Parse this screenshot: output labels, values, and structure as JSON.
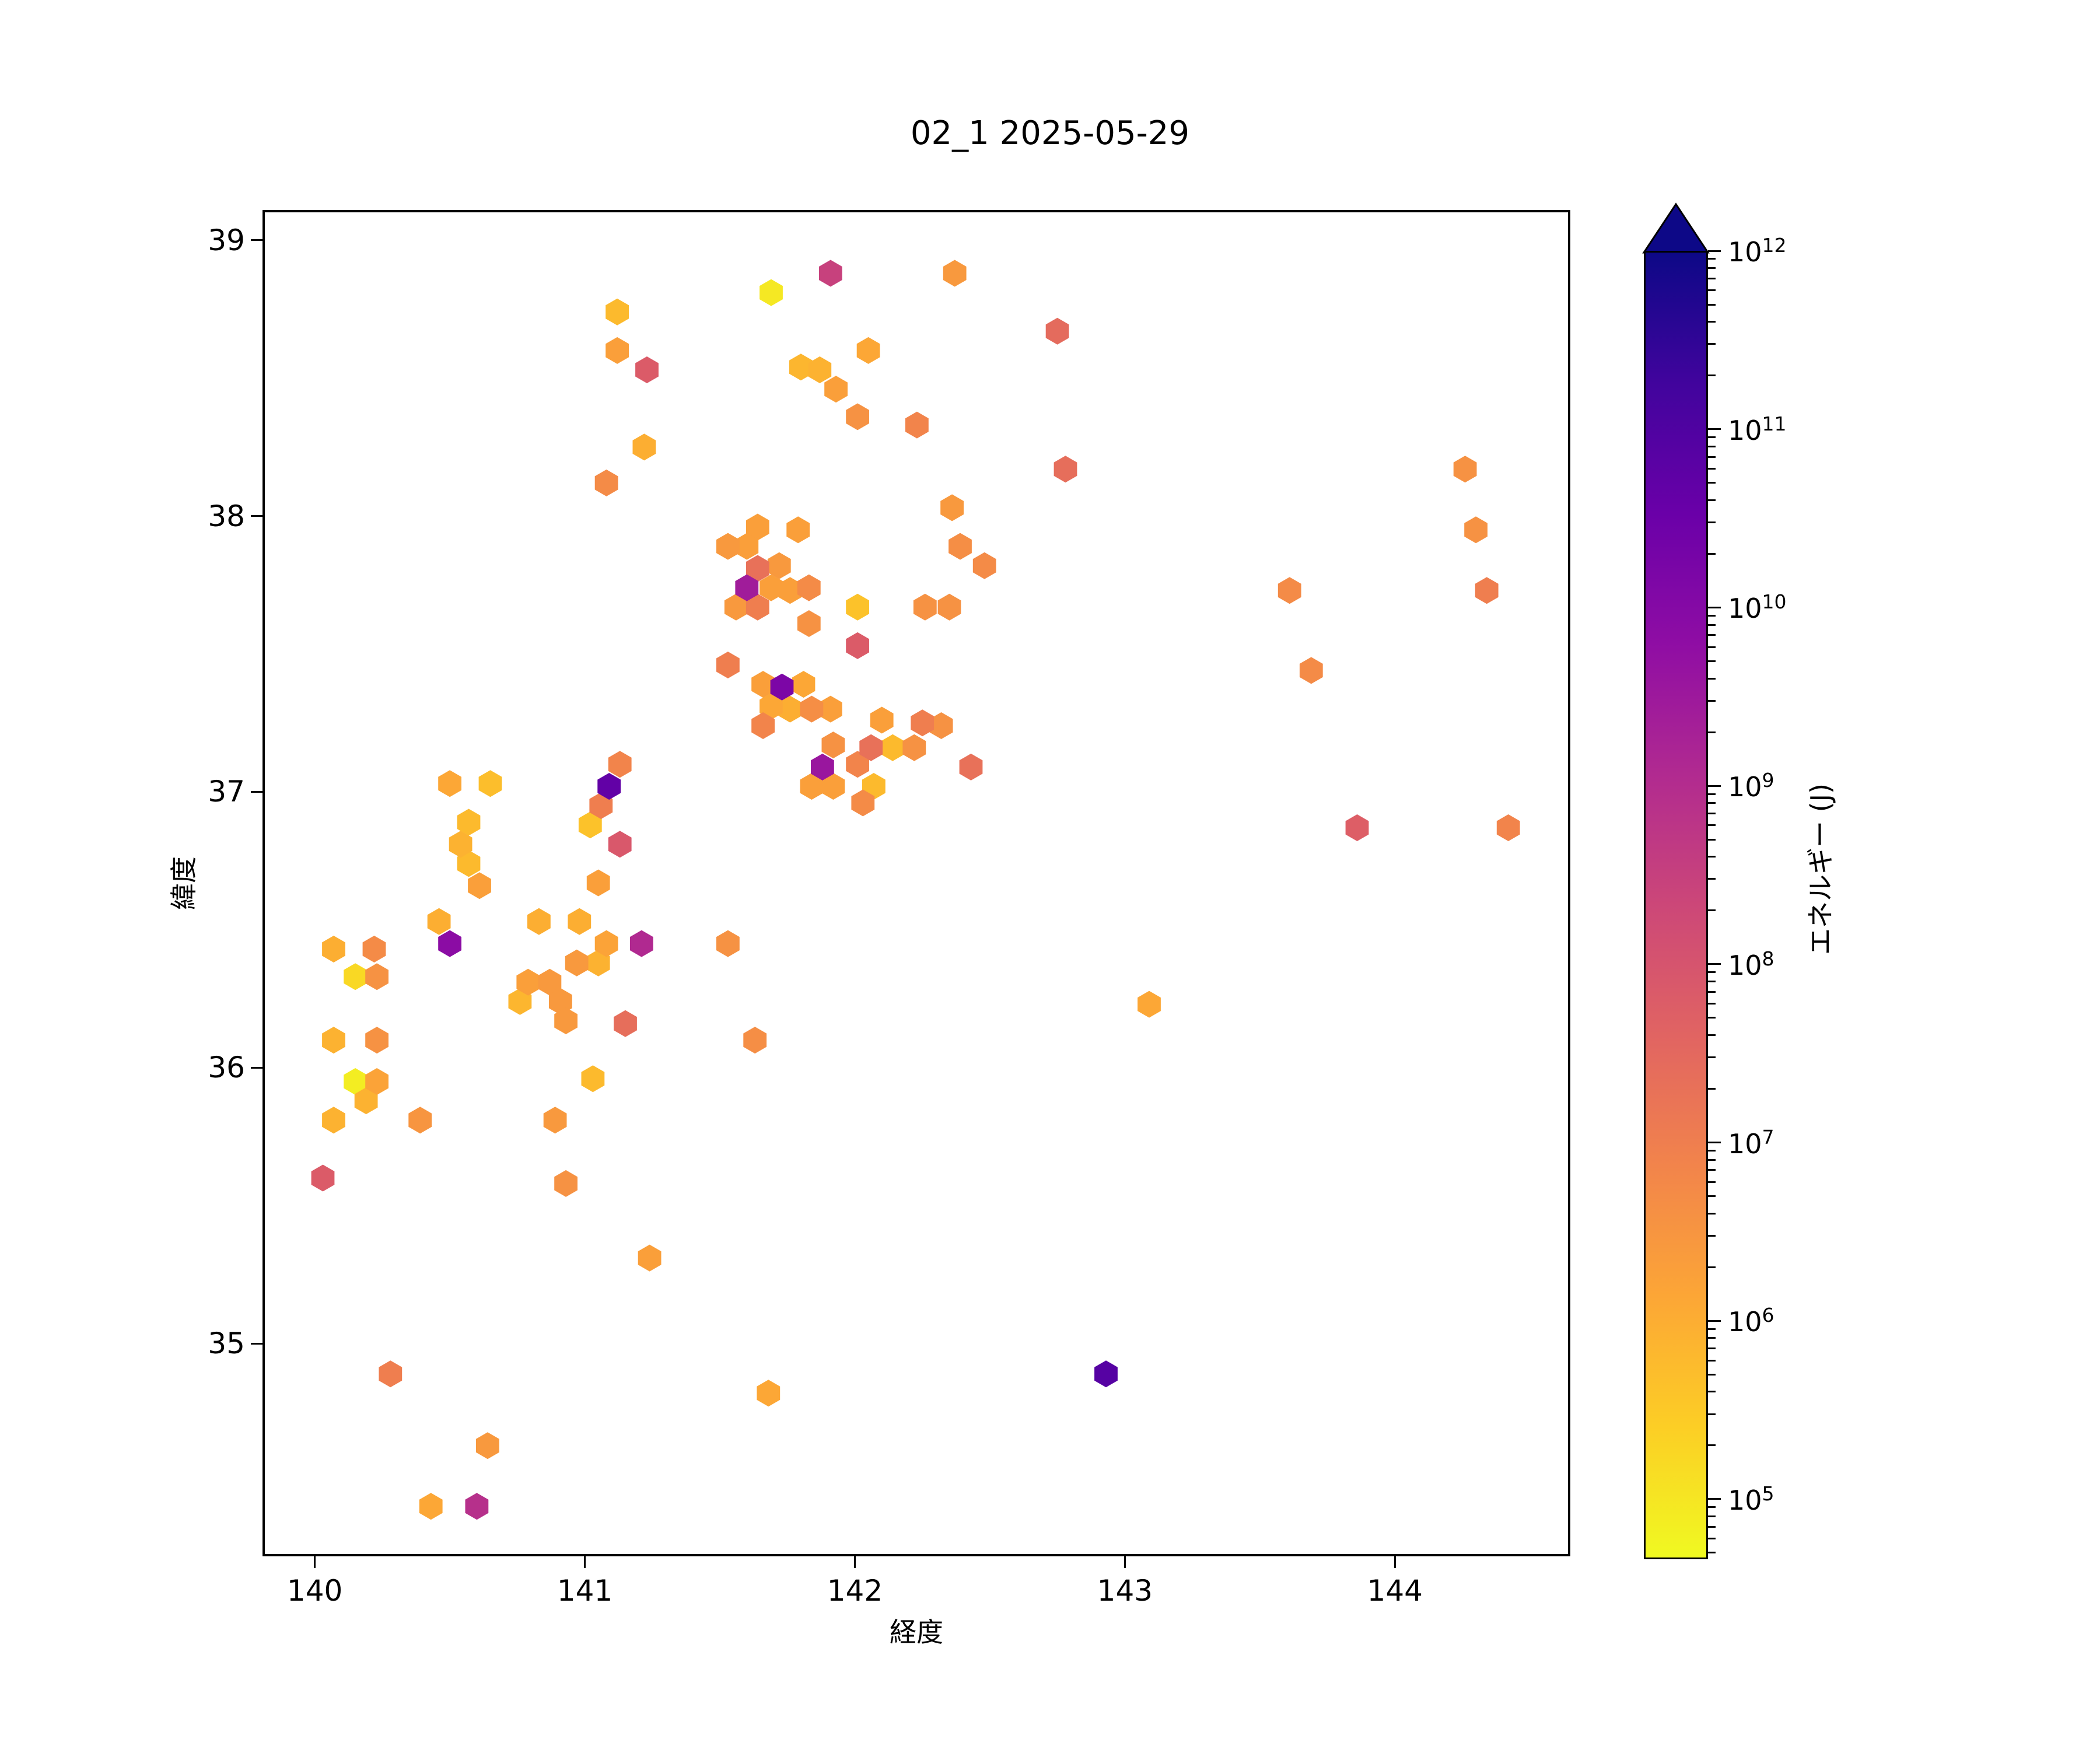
{
  "title": "02_1 2025-05-29",
  "axes": {
    "xlabel": "経度",
    "ylabel": "緯度",
    "x_ticks": [
      140,
      141,
      142,
      143,
      144
    ],
    "y_ticks": [
      35,
      36,
      37,
      38,
      39
    ]
  },
  "colorbar": {
    "label": "エネルギー (J)",
    "tick_exponents": [
      12,
      11,
      10,
      9,
      8,
      7,
      6,
      5
    ],
    "extend": "max"
  },
  "chart_data": {
    "type": "hexbin",
    "title": "02_1 2025-05-29",
    "xlabel": "経度",
    "ylabel": "緯度",
    "xlim": [
      139.815,
      144.641
    ],
    "ylim": [
      34.237,
      39.101
    ],
    "grid": false,
    "legend": "colorbar-right",
    "color_scale": {
      "type": "log",
      "colormap": "plasma (yellow=low, dark indigo=high)",
      "vmin": 46000,
      "vmax": 1000000000000.0,
      "unit": "J"
    },
    "hex_radius_px": 23,
    "points": [
      [
        141.91,
        38.88,
        300000000.0
      ],
      [
        141.69,
        38.81,
        89000.0
      ],
      [
        142.37,
        38.88,
        2600000.0
      ],
      [
        142.75,
        38.67,
        28000000.0
      ],
      [
        141.12,
        38.74,
        570000.0
      ],
      [
        141.12,
        38.6,
        1900000.0
      ],
      [
        141.23,
        38.53,
        65000000.0
      ],
      [
        141.8,
        38.54,
        680000.0
      ],
      [
        141.87,
        38.53,
        800000.0
      ],
      [
        141.93,
        38.46,
        1900000.0
      ],
      [
        142.05,
        38.6,
        1300000.0
      ],
      [
        142.01,
        38.36,
        3700000.0
      ],
      [
        142.23,
        38.33,
        7200000.0
      ],
      [
        142.78,
        38.17,
        23000000.0
      ],
      [
        141.22,
        38.25,
        950000.0
      ],
      [
        141.08,
        38.12,
        5100000.0
      ],
      [
        141.64,
        37.96,
        1900000.0
      ],
      [
        141.79,
        37.95,
        1900000.0
      ],
      [
        141.53,
        37.89,
        2600000.0
      ],
      [
        141.6,
        37.89,
        1900000.0
      ],
      [
        141.64,
        37.81,
        20000000.0
      ],
      [
        141.72,
        37.82,
        2600000.0
      ],
      [
        141.6,
        37.74,
        2700000000.0
      ],
      [
        141.69,
        37.74,
        1900000.0
      ],
      [
        141.76,
        37.73,
        1900000.0
      ],
      [
        141.83,
        37.74,
        5100000.0
      ],
      [
        141.56,
        37.67,
        2600000.0
      ],
      [
        141.64,
        37.67,
        10000000.0
      ],
      [
        141.83,
        37.61,
        3700000.0
      ],
      [
        142.01,
        37.67,
        410000.0
      ],
      [
        142.01,
        37.53,
        65000000.0
      ],
      [
        142.26,
        37.67,
        3700000.0
      ],
      [
        142.35,
        37.67,
        3700000.0
      ],
      [
        142.36,
        38.03,
        2600000.0
      ],
      [
        142.39,
        37.89,
        4400000.0
      ],
      [
        142.48,
        37.82,
        5100000.0
      ],
      [
        141.53,
        37.46,
        10000000.0
      ],
      [
        141.66,
        37.39,
        1900000.0
      ],
      [
        141.73,
        37.38,
        15000000000.0
      ],
      [
        141.81,
        37.39,
        1300000.0
      ],
      [
        141.69,
        37.31,
        1300000.0
      ],
      [
        141.76,
        37.3,
        950000.0
      ],
      [
        141.84,
        37.3,
        4400000.0
      ],
      [
        141.91,
        37.3,
        1900000.0
      ],
      [
        141.66,
        37.24,
        7200000.0
      ],
      [
        141.92,
        37.17,
        3700000.0
      ],
      [
        141.88,
        37.09,
        3800000000.0
      ],
      [
        141.84,
        37.02,
        1900000.0
      ],
      [
        141.92,
        37.02,
        1900000.0
      ],
      [
        142.1,
        37.26,
        1900000.0
      ],
      [
        142.25,
        37.25,
        10000000.0
      ],
      [
        142.32,
        37.24,
        3700000.0
      ],
      [
        142.06,
        37.16,
        20000000.0
      ],
      [
        142.14,
        37.16,
        570000.0
      ],
      [
        142.22,
        37.16,
        3700000.0
      ],
      [
        142.01,
        37.1,
        7200000.0
      ],
      [
        142.07,
        37.02,
        570000.0
      ],
      [
        142.03,
        36.96,
        5100000.0
      ],
      [
        142.43,
        37.09,
        20000000.0
      ],
      [
        140.5,
        37.03,
        1300000.0
      ],
      [
        140.65,
        37.03,
        480000.0
      ],
      [
        140.57,
        36.89,
        570000.0
      ],
      [
        140.54,
        36.81,
        800000.0
      ],
      [
        140.57,
        36.74,
        570000.0
      ],
      [
        140.61,
        36.66,
        1900000.0
      ],
      [
        140.46,
        36.53,
        950000.0
      ],
      [
        140.5,
        36.45,
        7400000000.0
      ],
      [
        141.13,
        37.1,
        7200000.0
      ],
      [
        141.09,
        37.02,
        48000000000.0
      ],
      [
        141.06,
        36.95,
        10000000.0
      ],
      [
        141.02,
        36.88,
        410000.0
      ],
      [
        141.13,
        36.81,
        78000000.0
      ],
      [
        141.05,
        36.67,
        1900000.0
      ],
      [
        140.83,
        36.53,
        950000.0
      ],
      [
        140.98,
        36.53,
        950000.0
      ],
      [
        141.08,
        36.45,
        1600000.0
      ],
      [
        140.97,
        36.38,
        2600000.0
      ],
      [
        141.05,
        36.38,
        800000.0
      ],
      [
        141.21,
        36.45,
        1200000000.0
      ],
      [
        141.53,
        36.45,
        3700000.0
      ],
      [
        140.79,
        36.31,
        1900000.0
      ],
      [
        140.87,
        36.31,
        2600000.0
      ],
      [
        140.76,
        36.24,
        680000.0
      ],
      [
        140.91,
        36.24,
        2600000.0
      ],
      [
        140.93,
        36.17,
        2600000.0
      ],
      [
        141.15,
        36.16,
        23000000.0
      ],
      [
        141.63,
        36.1,
        4400000.0
      ],
      [
        141.03,
        35.96,
        570000.0
      ],
      [
        140.89,
        35.81,
        2600000.0
      ],
      [
        140.93,
        35.58,
        3700000.0
      ],
      [
        140.07,
        36.43,
        950000.0
      ],
      [
        140.22,
        36.43,
        5100000.0
      ],
      [
        140.15,
        36.33,
        170000.0
      ],
      [
        140.23,
        36.33,
        3700000.0
      ],
      [
        140.07,
        36.1,
        800000.0
      ],
      [
        140.23,
        36.1,
        3700000.0
      ],
      [
        140.15,
        35.95,
        75000.0
      ],
      [
        140.23,
        35.95,
        1600000.0
      ],
      [
        140.19,
        35.88,
        800000.0
      ],
      [
        140.07,
        35.81,
        800000.0
      ],
      [
        140.39,
        35.81,
        3100000.0
      ],
      [
        140.03,
        35.6,
        65000000.0
      ],
      [
        141.24,
        35.31,
        1900000.0
      ],
      [
        140.28,
        34.89,
        10000000.0
      ],
      [
        141.68,
        34.82,
        1300000.0
      ],
      [
        142.93,
        34.89,
        79000000000.0
      ],
      [
        140.64,
        34.63,
        2600000.0
      ],
      [
        140.43,
        34.41,
        1300000.0
      ],
      [
        140.6,
        34.41,
        830000000.0
      ],
      [
        144.26,
        38.17,
        3700000.0
      ],
      [
        144.3,
        37.95,
        3700000.0
      ],
      [
        144.34,
        37.73,
        10000000.0
      ],
      [
        143.61,
        37.73,
        5100000.0
      ],
      [
        143.69,
        37.44,
        5100000.0
      ],
      [
        143.86,
        36.87,
        55000000.0
      ],
      [
        144.42,
        36.87,
        7200000.0
      ],
      [
        143.09,
        36.23,
        1300000.0
      ]
    ]
  }
}
